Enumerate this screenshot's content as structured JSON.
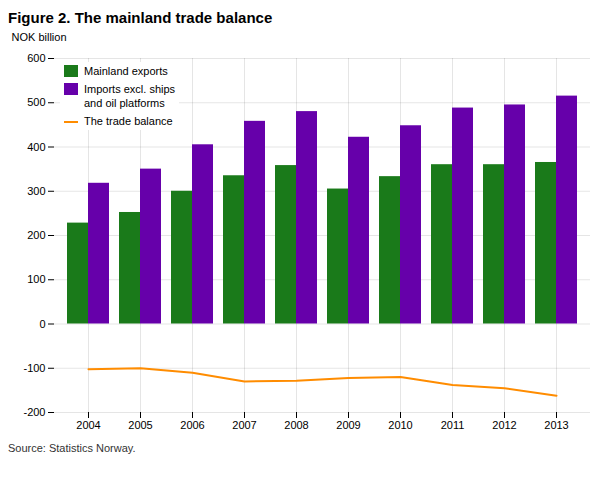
{
  "chart_data": {
    "type": "bar",
    "title": "Figure 2. The mainland trade balance",
    "ylabel": "NOK billion",
    "caption": "Source: Statistics Norway.",
    "categories": [
      "2004",
      "2005",
      "2006",
      "2007",
      "2008",
      "2009",
      "2010",
      "2011",
      "2012",
      "2013"
    ],
    "series": [
      {
        "name": "Mainland exports",
        "type": "bar",
        "color": "#1a7a1a",
        "values": [
          228,
          252,
          300,
          335,
          358,
          305,
          333,
          360,
          360,
          365
        ]
      },
      {
        "name": "Imports excl. ships\nand oil platforms",
        "type": "bar",
        "color": "#6600aa",
        "values": [
          318,
          350,
          405,
          458,
          480,
          422,
          448,
          488,
          495,
          515
        ]
      },
      {
        "name": "The trade balance",
        "type": "line",
        "color": "#ff8c00",
        "values": [
          -102,
          -100,
          -110,
          -130,
          -128,
          -122,
          -120,
          -138,
          -145,
          -162
        ]
      }
    ],
    "ylim": [
      -200,
      600
    ],
    "yticks": [
      -200,
      -100,
      0,
      100,
      200,
      300,
      400,
      500,
      600
    ],
    "grid": true,
    "legend": "upper left"
  }
}
